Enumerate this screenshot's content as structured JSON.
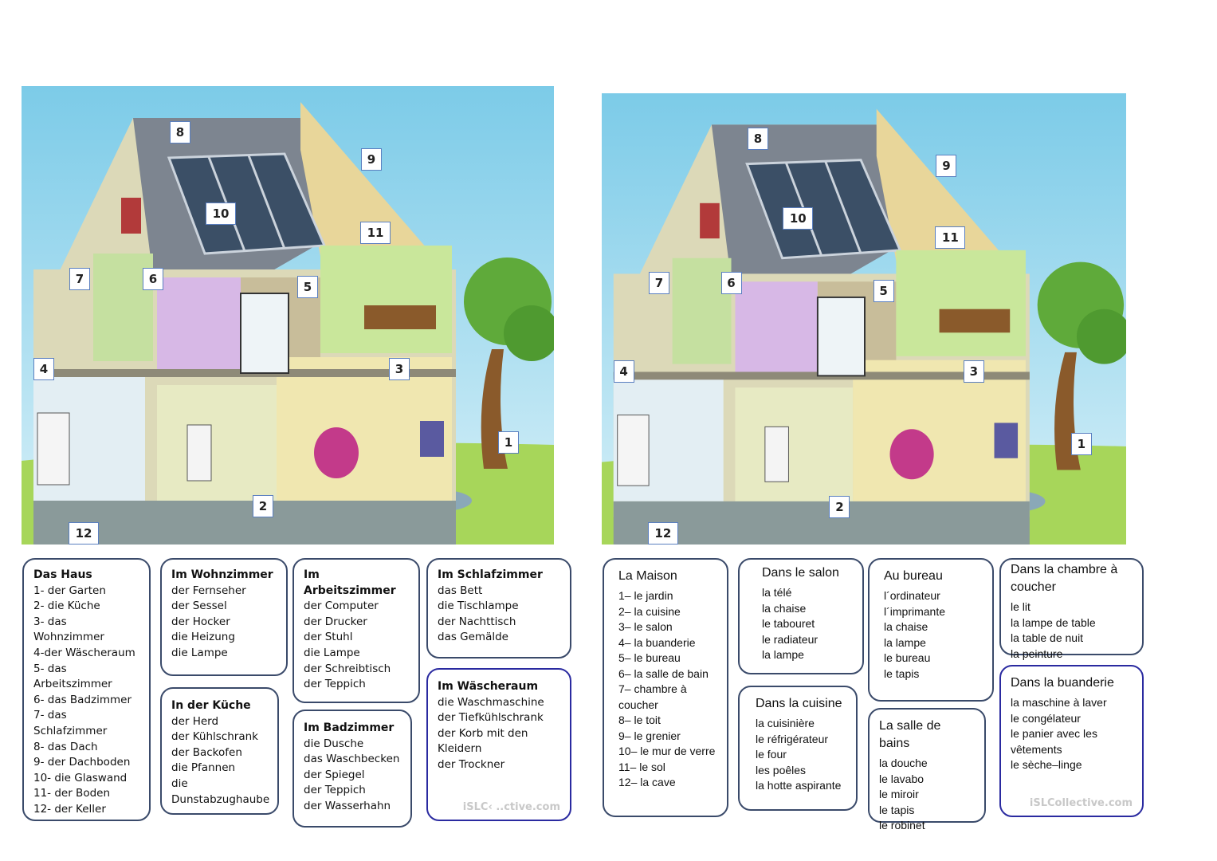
{
  "house_labels": [
    "1",
    "2",
    "3",
    "4",
    "5",
    "6",
    "7",
    "8",
    "9",
    "10",
    "11",
    "12"
  ],
  "german": {
    "haus": {
      "title": "Das Haus",
      "items": [
        "1- der Garten",
        "2- die Küche",
        "3- das Wohnzimmer",
        "4-der Wäscheraum",
        "5- das",
        "Arbeitszimmer",
        "6- das Badzimmer",
        "7- das",
        "Schlafzimmer",
        "8- das Dach",
        "9- der Dachboden",
        "10- die Glaswand",
        "11- der Boden",
        "12- der Keller"
      ]
    },
    "wohnzimmer": {
      "title": "Im Wohnzimmer",
      "items": [
        " der Fernseher",
        "der Sessel",
        "der Hocker",
        "die Heizung",
        "die Lampe"
      ]
    },
    "kueche": {
      "title": "In  der Küche",
      "items": [
        "der Herd",
        "der Kühlschrank",
        "der Backofen",
        "die Pfannen",
        "die",
        "Dunstabzughaube"
      ]
    },
    "arbeitszimmer": {
      "title": "Im  Arbeitszimmer",
      "items": [
        "der Computer",
        "der Drucker",
        "der Stuhl",
        "die Lampe",
        "der Schreibtisch",
        "der Teppich"
      ]
    },
    "badzimmer": {
      "title": "Im Badzimmer",
      "items": [
        "die Dusche",
        "das Waschbecken",
        "der Spiegel",
        "der Teppich",
        "der Wasserhahn"
      ]
    },
    "schlafzimmer": {
      "title": "Im Schlafzimmer",
      "items": [
        "das Bett",
        "die Tischlampe",
        "der Nachttisch",
        "das Gemälde"
      ]
    },
    "waescheraum": {
      "title": "Im Wäscheraum",
      "items": [
        "die Waschmaschine",
        "der Tiefkühlschrank",
        "der  Korb mit den",
        "Kleidern",
        "der Trockner"
      ],
      "watermark": "iSLC‹ ..ctive.com"
    }
  },
  "french": {
    "maison": {
      "title": "La Maison",
      "items": [
        "1– le jardin",
        "2– la cuisine",
        "3– le salon",
        "4– la buanderie",
        "5– le bureau",
        "6– la salle de bain",
        "7– chambre à",
        "coucher",
        "8– le toit",
        "9– le grenier",
        "10– le mur de verre",
        "11– le sol",
        "12– la cave"
      ]
    },
    "salon": {
      "title": "Dans le salon",
      "items": [
        "la télé",
        "la chaise",
        "le tabouret",
        "le radiateur",
        "la lampe"
      ]
    },
    "cuisine": {
      "title": "Dans la cuisine",
      "items": [
        "la cuisinière",
        "le réfrigérateur",
        "le four",
        "les poêles",
        "la hotte aspirante"
      ]
    },
    "bureau": {
      "title": "Au bureau",
      "items": [
        "l´ordinateur",
        "l´imprimante",
        "la chaise",
        "la lampe",
        "le bureau",
        "le tapis"
      ]
    },
    "bains": {
      "title": "La salle de bains",
      "items": [
        "la douche",
        "le lavabo",
        "le miroir",
        "le tapis",
        "le robinet"
      ]
    },
    "chambre": {
      "title": "Dans la chambre à coucher",
      "items": [
        "le lit",
        "la lampe de table",
        "la table de nuit",
        "la peinture"
      ]
    },
    "buanderie": {
      "title": "Dans la buanderie",
      "items": [
        "la maschine à laver",
        "le congélateur",
        "le panier avec les",
        "vêtements",
        "le sèche–linge"
      ],
      "watermark": "iSLCollective.com"
    }
  },
  "colors": {
    "sky": "#8fd3ec",
    "grass": "#a7d65a",
    "wall": "#dcd9b8",
    "roof": "#7d8590",
    "panel_border": "#3a4a6a",
    "panel_border_blue": "#2a2aa0"
  }
}
